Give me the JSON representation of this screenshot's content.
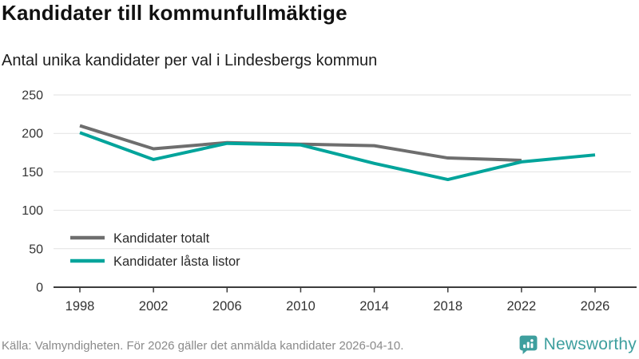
{
  "header": {
    "title": "Kandidater till kommunfullmäktige",
    "subtitle": "Antal unika kandidater per val i Lindesbergs kommun"
  },
  "chart_data": {
    "type": "line",
    "title": "Kandidater till kommunfullmäktige",
    "subtitle": "Antal unika kandidater per val i Lindesbergs kommun",
    "xticks": [
      1998,
      2002,
      2006,
      2010,
      2014,
      2018,
      2022,
      2026
    ],
    "yticks": [
      0,
      50,
      100,
      150,
      200,
      250
    ],
    "ylim": [
      0,
      250
    ],
    "xlim": [
      1998,
      2026
    ],
    "grid": "horizontal",
    "legend_position": "inside-bottom-left",
    "series": [
      {
        "name": "Kandidater totalt",
        "color": "#6e6e6e",
        "x": [
          1998,
          2002,
          2006,
          2010,
          2014,
          2018,
          2022
        ],
        "values": [
          210,
          180,
          188,
          186,
          184,
          168,
          165
        ]
      },
      {
        "name": "Kandidater låsta listor",
        "color": "#00a49b",
        "x": [
          1998,
          2002,
          2006,
          2010,
          2014,
          2018,
          2022,
          2026
        ],
        "values": [
          201,
          166,
          187,
          185,
          161,
          140,
          163,
          172
        ]
      }
    ]
  },
  "footer": {
    "source": "Källa: Valmyndigheten. För 2026 gäller det anmälda kandidater 2026-04-10.",
    "brand": "Newsworthy"
  },
  "colors": {
    "line_gray": "#6e6e6e",
    "line_teal": "#00a49b",
    "logo_teal": "#3e9f9e",
    "axis": "#3c3c3c",
    "grid": "#e2e2e2",
    "tick_text": "#333333",
    "source_text": "#8a8a8a"
  }
}
